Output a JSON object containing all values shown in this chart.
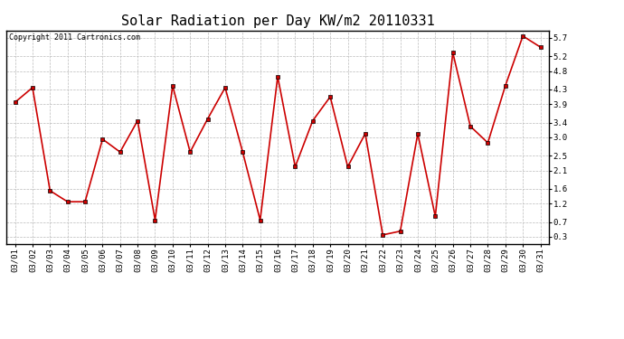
{
  "title": "Solar Radiation per Day KW/m2 20110331",
  "copyright": "Copyright 2011 Cartronics.com",
  "dates": [
    "03/01",
    "03/02",
    "03/03",
    "03/04",
    "03/05",
    "03/06",
    "03/07",
    "03/08",
    "03/09",
    "03/10",
    "03/11",
    "03/12",
    "03/13",
    "03/14",
    "03/15",
    "03/16",
    "03/17",
    "03/18",
    "03/19",
    "03/20",
    "03/21",
    "03/22",
    "03/23",
    "03/24",
    "03/25",
    "03/26",
    "03/27",
    "03/28",
    "03/29",
    "03/30",
    "03/31"
  ],
  "values": [
    3.95,
    4.35,
    1.55,
    1.25,
    1.25,
    2.95,
    2.6,
    3.45,
    0.75,
    4.4,
    2.6,
    3.5,
    4.35,
    2.6,
    0.75,
    4.65,
    2.2,
    3.45,
    4.1,
    2.2,
    3.1,
    0.35,
    0.45,
    3.1,
    0.85,
    5.3,
    3.3,
    2.85,
    4.4,
    5.75,
    5.45
  ],
  "line_color": "#cc0000",
  "marker": "s",
  "marker_color": "#cc0000",
  "marker_size": 2.5,
  "line_width": 1.2,
  "yticks": [
    0.3,
    0.7,
    1.2,
    1.6,
    2.1,
    2.5,
    3.0,
    3.4,
    3.9,
    4.3,
    4.8,
    5.2,
    5.7
  ],
  "ylim": [
    0.1,
    5.9
  ],
  "bg_color": "#ffffff",
  "plot_bg_color": "#ffffff",
  "grid_color": "#bbbbbb",
  "title_fontsize": 11,
  "copyright_fontsize": 6,
  "tick_fontsize": 6.5
}
